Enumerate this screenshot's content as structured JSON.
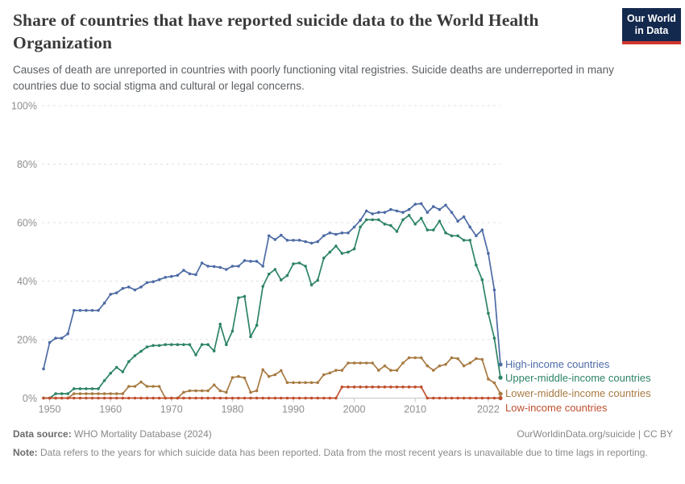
{
  "header": {
    "title": "Share of countries that have reported suicide data to the World Health Organization",
    "subtitle": "Causes of death are unreported in countries with poorly functioning vital registries. Suicide deaths are underreported in many countries due to social stigma and cultural or legal concerns.",
    "logo": {
      "line1": "Our World",
      "line2": "in Data"
    }
  },
  "chart_data": {
    "type": "line",
    "title": "Share of countries that have reported suicide data to the World Health Organization",
    "xlabel": "",
    "ylabel": "",
    "ylim": [
      0,
      100
    ],
    "xlim": [
      1949,
      2024
    ],
    "grid": true,
    "gridline_style": "dashed",
    "legend_position": "right-of-line-ends",
    "y_ticks": [
      0,
      20,
      40,
      60,
      80,
      100
    ],
    "y_tick_labels": [
      "0%",
      "20%",
      "40%",
      "60%",
      "80%",
      "100%"
    ],
    "x_ticks": [
      1950,
      1960,
      1970,
      1980,
      1990,
      2000,
      2010,
      2022
    ],
    "x_tick_labels": [
      "1950",
      "1960",
      "1970",
      "1980",
      "1990",
      "2000",
      "2010",
      "2022"
    ],
    "years": [
      1949,
      1950,
      1951,
      1952,
      1953,
      1954,
      1955,
      1956,
      1957,
      1958,
      1959,
      1960,
      1961,
      1962,
      1963,
      1964,
      1965,
      1966,
      1967,
      1968,
      1969,
      1970,
      1971,
      1972,
      1973,
      1974,
      1975,
      1976,
      1977,
      1978,
      1979,
      1980,
      1981,
      1982,
      1983,
      1984,
      1985,
      1986,
      1987,
      1988,
      1989,
      1990,
      1991,
      1992,
      1993,
      1994,
      1995,
      1996,
      1997,
      1998,
      1999,
      2000,
      2001,
      2002,
      2003,
      2004,
      2005,
      2006,
      2007,
      2008,
      2009,
      2010,
      2011,
      2012,
      2013,
      2014,
      2015,
      2016,
      2017,
      2018,
      2019,
      2020,
      2021,
      2022,
      2023,
      2024
    ],
    "series": [
      {
        "name": "High-income countries",
        "color": "#4d6ba5",
        "values": [
          10,
          19,
          20.5,
          20.5,
          22,
          30,
          30,
          30,
          30,
          30,
          32.5,
          35.5,
          36,
          37.5,
          38,
          37,
          38,
          39.5,
          39.8,
          40.5,
          41.3,
          41.6,
          42,
          43.7,
          42.5,
          42.2,
          46.2,
          45.1,
          45,
          44.7,
          44,
          45.1,
          45.1,
          47,
          46.8,
          46.8,
          45.1,
          55.5,
          54.2,
          55.7,
          54,
          54,
          54,
          53.5,
          53,
          53.5,
          55.5,
          56.5,
          56,
          56.5,
          56.5,
          58.5,
          60.8,
          64,
          63,
          63.5,
          63.5,
          64.5,
          64,
          63.5,
          64.5,
          66.3,
          66.5,
          63.5,
          65.5,
          64.5,
          66,
          63.5,
          60.5,
          62,
          58.5,
          55.5,
          57.5,
          49.5,
          37,
          11.5
        ]
      },
      {
        "name": "Upper-middle-income countries",
        "color": "#2d8465",
        "values": [
          0,
          0,
          1.5,
          1.5,
          1.5,
          3.2,
          3.2,
          3.2,
          3.2,
          3.2,
          6,
          8.5,
          10.5,
          9,
          12.5,
          14.5,
          16,
          17.5,
          18,
          18,
          18.3,
          18.3,
          18.3,
          18.3,
          18.3,
          14.8,
          18.3,
          18.3,
          16.1,
          25.3,
          18.3,
          22.9,
          34.3,
          34.8,
          21,
          24.9,
          38.2,
          42.4,
          44,
          40.4,
          41.9,
          45.9,
          46.2,
          45.1,
          38.7,
          40.3,
          47.9,
          49.9,
          52,
          49.5,
          49.9,
          51,
          58.5,
          61,
          61,
          61,
          59.5,
          59,
          57,
          61,
          62.5,
          59.5,
          61.5,
          57.5,
          57.5,
          60.5,
          56.5,
          55.5,
          55.5,
          54,
          54,
          45.5,
          40.5,
          29,
          20.5,
          7
        ]
      },
      {
        "name": "Lower-middle-income countries",
        "color": "#a87a42",
        "values": [
          0,
          0,
          0,
          0,
          0,
          1.5,
          1.5,
          1.5,
          1.5,
          1.5,
          1.5,
          1.5,
          1.5,
          1.5,
          4,
          4,
          5.5,
          4,
          4,
          4,
          0,
          0,
          0,
          2,
          2.5,
          2.5,
          2.5,
          2.5,
          4.5,
          2.5,
          2,
          7,
          7.4,
          6.9,
          2,
          2.5,
          9.7,
          7.4,
          8,
          9.4,
          5.3,
          5.3,
          5.3,
          5.3,
          5.3,
          5.3,
          8,
          8.6,
          9.5,
          9.5,
          12,
          12,
          12,
          12,
          12,
          9.5,
          11,
          9.5,
          9.5,
          12,
          13.8,
          13.8,
          13.8,
          11,
          9.5,
          11,
          11.5,
          13.8,
          13.5,
          11,
          12,
          13.5,
          13.2,
          6.5,
          5.2,
          1.5
        ]
      },
      {
        "name": "Low-income countries",
        "color": "#c04f2e",
        "values": [
          0,
          0,
          0,
          0,
          0,
          0,
          0,
          0,
          0,
          0,
          0,
          0,
          0,
          0,
          0,
          0,
          0,
          0,
          0,
          0,
          0,
          0,
          0,
          0,
          0,
          0,
          0,
          0,
          0,
          0,
          0,
          0,
          0,
          0,
          0,
          0,
          0,
          0,
          0,
          0,
          0,
          0,
          0,
          0,
          0,
          0,
          0,
          0,
          0,
          3.8,
          3.8,
          3.8,
          3.8,
          3.8,
          3.8,
          3.8,
          3.8,
          3.8,
          3.8,
          3.8,
          3.8,
          3.8,
          3.8,
          0,
          0,
          0,
          0,
          0,
          0,
          0,
          0,
          0,
          0,
          0,
          0,
          0
        ]
      }
    ]
  },
  "footer": {
    "data_source_label": "Data source:",
    "data_source": "WHO Mortality Database (2024)",
    "link": "OurWorldinData.org/suicide | CC BY",
    "note_label": "Note:",
    "note": "Data refers to the years for which suicide data has been reported. Data from the most recent years is unavailable due to time lags in reporting."
  }
}
